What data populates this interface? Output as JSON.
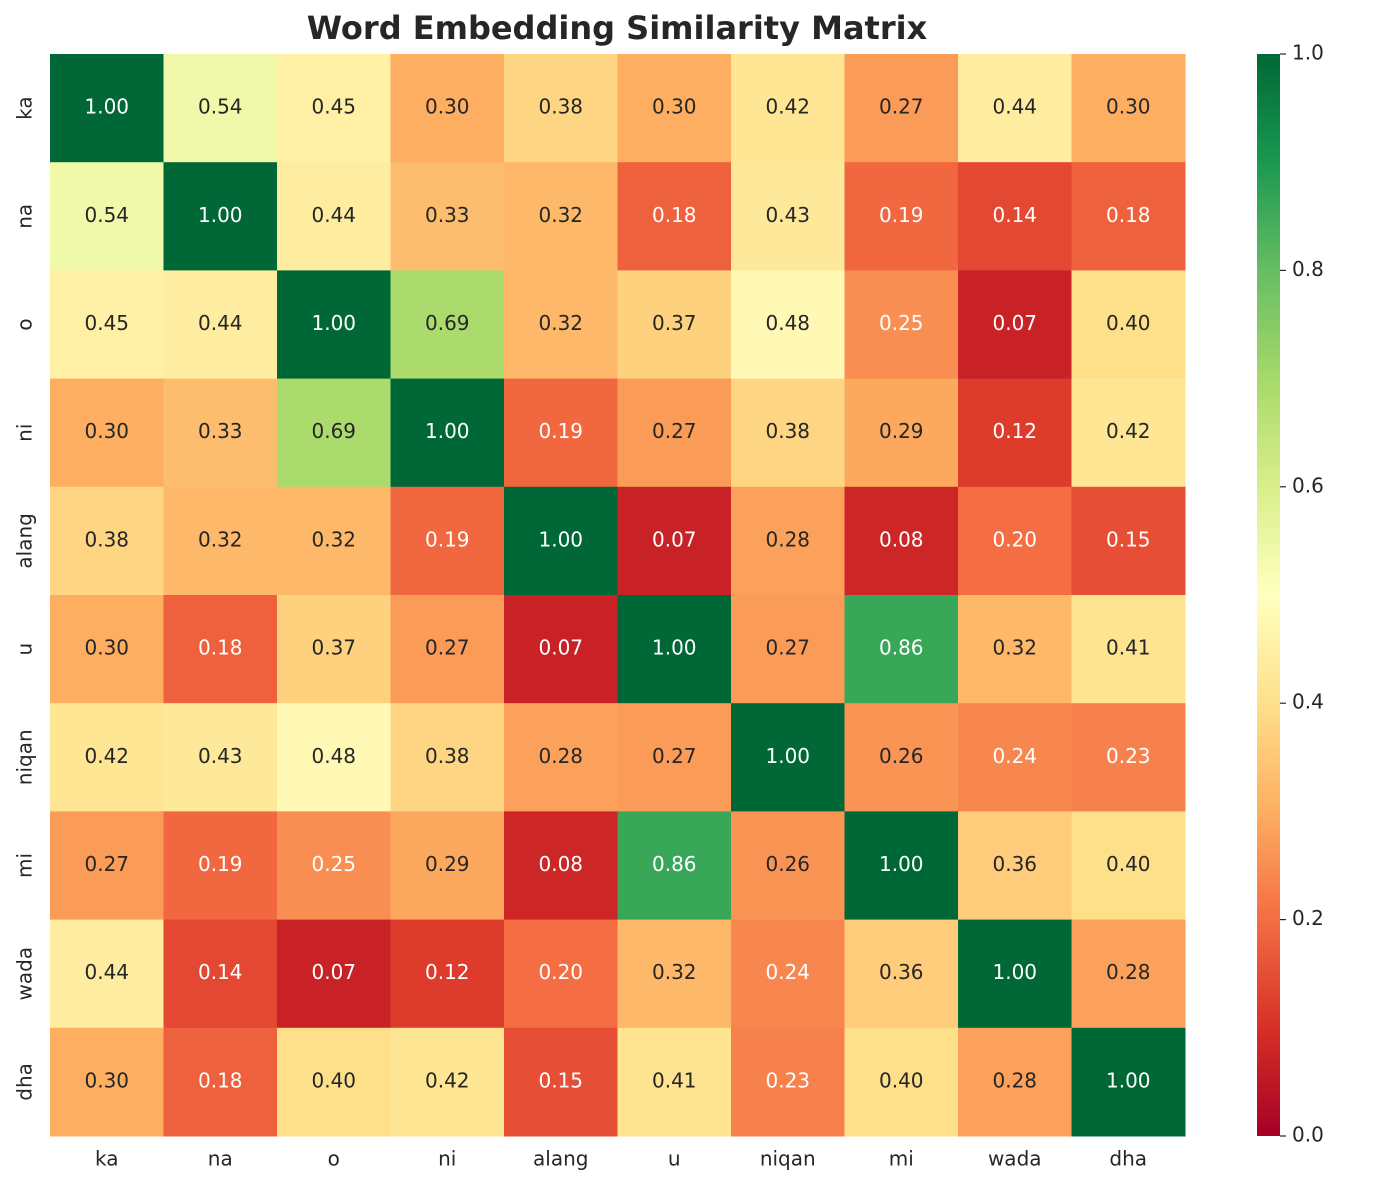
{
  "chart_data": {
    "type": "heatmap",
    "title": "Word Embedding Similarity Matrix",
    "x": [
      "ka",
      "na",
      "o",
      "ni",
      "alang",
      "u",
      "niqan",
      "mi",
      "wada",
      "dha"
    ],
    "y": [
      "ka",
      "na",
      "o",
      "ni",
      "alang",
      "u",
      "niqan",
      "mi",
      "wada",
      "dha"
    ],
    "values": [
      [
        1.0,
        0.54,
        0.45,
        0.3,
        0.38,
        0.3,
        0.42,
        0.27,
        0.44,
        0.3
      ],
      [
        0.54,
        1.0,
        0.44,
        0.33,
        0.32,
        0.18,
        0.43,
        0.19,
        0.14,
        0.18
      ],
      [
        0.45,
        0.44,
        1.0,
        0.69,
        0.32,
        0.37,
        0.48,
        0.25,
        0.07,
        0.4
      ],
      [
        0.3,
        0.33,
        0.69,
        1.0,
        0.19,
        0.27,
        0.38,
        0.29,
        0.12,
        0.42
      ],
      [
        0.38,
        0.32,
        0.32,
        0.19,
        1.0,
        0.07,
        0.28,
        0.08,
        0.2,
        0.15
      ],
      [
        0.3,
        0.18,
        0.37,
        0.27,
        0.07,
        1.0,
        0.27,
        0.86,
        0.32,
        0.41
      ],
      [
        0.42,
        0.43,
        0.48,
        0.38,
        0.28,
        0.27,
        1.0,
        0.26,
        0.24,
        0.23
      ],
      [
        0.27,
        0.19,
        0.25,
        0.29,
        0.08,
        0.86,
        0.26,
        1.0,
        0.36,
        0.4
      ],
      [
        0.44,
        0.14,
        0.07,
        0.12,
        0.2,
        0.32,
        0.24,
        0.36,
        1.0,
        0.28
      ],
      [
        0.3,
        0.18,
        0.4,
        0.42,
        0.15,
        0.41,
        0.23,
        0.4,
        0.28,
        1.0
      ]
    ],
    "value_labels": [
      [
        "1.00",
        "0.54",
        "0.45",
        "0.30",
        "0.38",
        "0.30",
        "0.42",
        "0.27",
        "0.44",
        "0.30"
      ],
      [
        "0.54",
        "1.00",
        "0.44",
        "0.33",
        "0.32",
        "0.18",
        "0.43",
        "0.19",
        "0.14",
        "0.18"
      ],
      [
        "0.45",
        "0.44",
        "1.00",
        "0.69",
        "0.32",
        "0.37",
        "0.48",
        "0.25",
        "0.07",
        "0.40"
      ],
      [
        "0.30",
        "0.33",
        "0.69",
        "1.00",
        "0.19",
        "0.27",
        "0.38",
        "0.29",
        "0.12",
        "0.42"
      ],
      [
        "0.38",
        "0.32",
        "0.32",
        "0.19",
        "1.00",
        "0.07",
        "0.28",
        "0.08",
        "0.20",
        "0.15"
      ],
      [
        "0.30",
        "0.18",
        "0.37",
        "0.27",
        "0.07",
        "1.00",
        "0.27",
        "0.86",
        "0.32",
        "0.41"
      ],
      [
        "0.42",
        "0.43",
        "0.48",
        "0.38",
        "0.28",
        "0.27",
        "1.00",
        "0.26",
        "0.24",
        "0.23"
      ],
      [
        "0.27",
        "0.19",
        "0.25",
        "0.29",
        "0.08",
        "0.86",
        "0.26",
        "1.00",
        "0.36",
        "0.40"
      ],
      [
        "0.44",
        "0.14",
        "0.07",
        "0.12",
        "0.20",
        "0.32",
        "0.24",
        "0.36",
        "1.00",
        "0.28"
      ],
      [
        "0.30",
        "0.18",
        "0.40",
        "0.42",
        "0.15",
        "0.41",
        "0.23",
        "0.40",
        "0.28",
        "1.00"
      ]
    ],
    "colormap": [
      "#a50026",
      "#d73027",
      "#f46d43",
      "#fdae61",
      "#fee08b",
      "#ffffbf",
      "#d9ef8b",
      "#a6d96a",
      "#66bd63",
      "#1a9850",
      "#006837"
    ],
    "zlim": [
      0,
      1
    ],
    "zticks": [
      {
        "value": 0,
        "label": "0.0"
      },
      {
        "value": 0.2,
        "label": "0.2"
      },
      {
        "value": 0.4,
        "label": "0.4"
      },
      {
        "value": 0.6,
        "label": "0.6"
      },
      {
        "value": 0.8,
        "label": "0.8"
      },
      {
        "value": 1,
        "label": "1.0"
      }
    ]
  }
}
